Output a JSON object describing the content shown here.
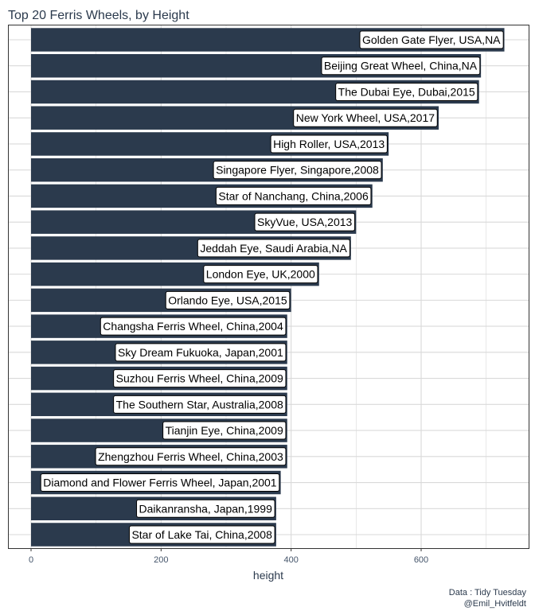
{
  "chart_data": {
    "type": "bar",
    "orientation": "horizontal",
    "title": "Top 20 Ferris Wheels, by Height",
    "xlabel": "height",
    "ylabel": "",
    "xlim": [
      0,
      760
    ],
    "x_ticks": [
      0,
      200,
      400,
      600
    ],
    "grid": true,
    "bars": [
      {
        "label": "Golden Gate Flyer, USA,NA",
        "value": 728
      },
      {
        "label": "Beijing Great Wheel, China,NA",
        "value": 692
      },
      {
        "label": "The Dubai Eye, Dubai,2015",
        "value": 689
      },
      {
        "label": "New York Wheel, USA,2017",
        "value": 627
      },
      {
        "label": "High Roller, USA,2013",
        "value": 550
      },
      {
        "label": "Singapore Flyer, Singapore,2008",
        "value": 541
      },
      {
        "label": "Star of Nanchang, China,2006",
        "value": 525
      },
      {
        "label": "SkyVue, USA,2013",
        "value": 500
      },
      {
        "label": "Jeddah Eye, Saudi Arabia,NA",
        "value": 492
      },
      {
        "label": "London Eye, UK,2000",
        "value": 443
      },
      {
        "label": "Orlando Eye, USA,2015",
        "value": 400
      },
      {
        "label": "Changsha Ferris Wheel, China,2004",
        "value": 394
      },
      {
        "label": "Sky Dream Fukuoka, Japan,2001",
        "value": 394
      },
      {
        "label": "Suzhou Ferris Wheel, China,2009",
        "value": 394
      },
      {
        "label": "The Southern Star, Australia,2008",
        "value": 394
      },
      {
        "label": "Tianjin Eye, China,2009",
        "value": 394
      },
      {
        "label": "Zhengzhou Ferris Wheel, China,2003",
        "value": 394
      },
      {
        "label": "Diamond and Flower Ferris Wheel, Japan,2001",
        "value": 384
      },
      {
        "label": "Daikanransha, Japan,1999",
        "value": 377
      },
      {
        "label": "Star of Lake Tai, China,2008",
        "value": 377
      }
    ]
  },
  "caption": {
    "source": "Data : Tidy Tuesday",
    "author": "@Emil_Hvitfeldt"
  },
  "colors": {
    "bar": "#2b3a4d",
    "grid": "#d9d9d9",
    "panel_border": "#333333",
    "text": "#2b3a4d"
  }
}
